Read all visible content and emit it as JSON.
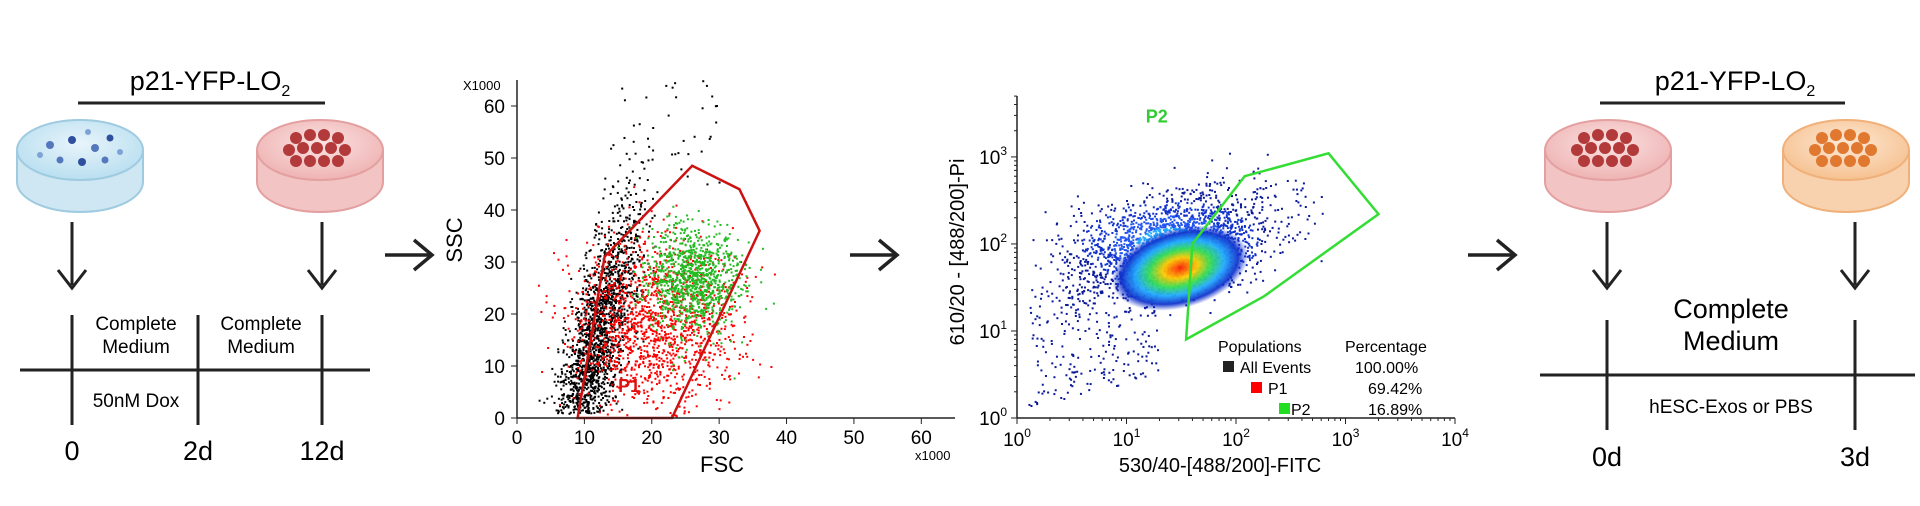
{
  "panel1": {
    "title_main": "p21-YFP-LO",
    "title_sub": "2",
    "label_complete": "Complete",
    "label_medium": "Medium",
    "label_dox": "50nM Dox",
    "t0": "0",
    "t2": "2d",
    "t12": "12d"
  },
  "panel2": {
    "chart_data": {
      "type": "scatter",
      "title": "",
      "xlabel": "FSC",
      "ylabel": "SSC",
      "x_multiplier": "x1000",
      "y_multiplier": "X1000",
      "xlim": [
        0,
        65
      ],
      "ylim": [
        0,
        65
      ],
      "x_ticks": [
        "0",
        "10",
        "20",
        "30",
        "40",
        "50",
        "60"
      ],
      "y_ticks": [
        "0",
        "10",
        "20",
        "30",
        "40",
        "50",
        "60"
      ],
      "gate_label": "P1",
      "gate_polygon": [
        [
          23,
          0
        ],
        [
          36,
          36
        ],
        [
          33,
          44
        ],
        [
          26,
          48.5
        ],
        [
          13,
          31
        ],
        [
          9,
          0
        ]
      ],
      "series": [
        {
          "color": "#000000",
          "center": [
            9,
            20
          ],
          "spread": [
            2.2,
            12
          ]
        },
        {
          "color": "#ff0000",
          "center": [
            20,
            18
          ],
          "spread": [
            6,
            8
          ]
        },
        {
          "color": "#22bb22",
          "center": [
            26,
            27
          ],
          "spread": [
            3.5,
            5
          ]
        }
      ]
    }
  },
  "panel3": {
    "chart_data": {
      "type": "scatter",
      "title": "",
      "xlabel": "530/40-[488/200]-FITC",
      "ylabel": "610/20 - [488/200]-Pi",
      "x_scale": "log",
      "y_scale": "log",
      "xlim": [
        1,
        10000
      ],
      "ylim": [
        1,
        10000
      ],
      "x_ticks": [
        "10",
        "10",
        "10",
        "10",
        "10"
      ],
      "x_tick_exp": [
        "0",
        "1",
        "2",
        "3",
        "4"
      ],
      "y_ticks": [
        "10",
        "10",
        "10",
        "10"
      ],
      "y_tick_exp": [
        "0",
        "1",
        "2",
        "3"
      ],
      "gate_label": "P2",
      "gate_polygon": [
        [
          35,
          8
        ],
        [
          180,
          25
        ],
        [
          2000,
          220
        ],
        [
          700,
          1100
        ],
        [
          120,
          600
        ],
        [
          40,
          100
        ]
      ],
      "legend": {
        "col1": "Populations",
        "col2": "Percentage",
        "rows": [
          {
            "name": "All Events",
            "value": "100.00%",
            "color": "#222222"
          },
          {
            "name": "P1",
            "value": "69.42%",
            "color": "#ff0000"
          },
          {
            "name": "P2",
            "value": "16.89%",
            "color": "#22dd22"
          }
        ]
      }
    }
  },
  "panel4": {
    "title_main": "p21-YFP-LO",
    "title_sub": "2",
    "label_complete": "Complete",
    "label_medium": "Medium",
    "label_treat": "hESC-Exos or PBS",
    "t0": "0d",
    "t3": "3d"
  }
}
